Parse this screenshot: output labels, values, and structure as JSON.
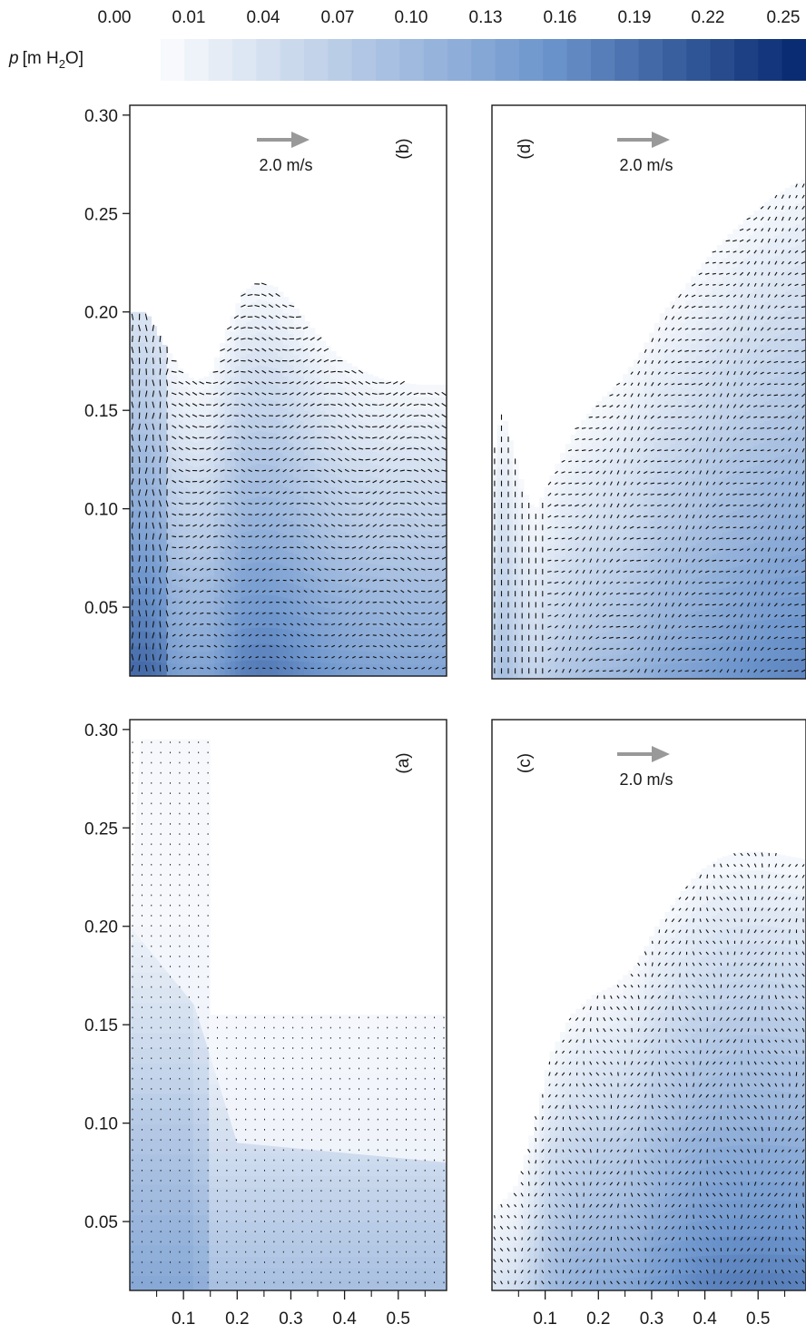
{
  "colorbar": {
    "label_italic": "p",
    "label_unit": "[m H",
    "label_sub": "2",
    "label_end": "O]",
    "ticks": [
      "0.00",
      "0.01",
      "0.04",
      "0.07",
      "0.10",
      "0.13",
      "0.16",
      "0.19",
      "0.22",
      "0.25"
    ],
    "color_low": "#f7f9fc",
    "color_high": "#0a2c73",
    "bands": 27
  },
  "scale_arrow": {
    "label": "2.0 m/s",
    "color": "#999999"
  },
  "chart_data": [
    {
      "type": "vector-field",
      "panel_label": "(b)",
      "xlim": [
        0.0,
        0.59
      ],
      "ylim": [
        0.015,
        0.305
      ],
      "yticks": [
        "0.30",
        "0.25",
        "0.20",
        "0.15",
        "0.10",
        "0.05"
      ],
      "ytick_values": [
        0.3,
        0.25,
        0.2,
        0.15,
        0.1,
        0.05
      ],
      "xticks": [],
      "free_surface": {
        "x": [
          0.0,
          0.03,
          0.06,
          0.09,
          0.12,
          0.15,
          0.18,
          0.21,
          0.24,
          0.27,
          0.3,
          0.33,
          0.36,
          0.39,
          0.42,
          0.45,
          0.48,
          0.51,
          0.54,
          0.57,
          0.59
        ],
        "y": [
          0.2,
          0.2,
          0.185,
          0.172,
          0.165,
          0.168,
          0.19,
          0.21,
          0.215,
          0.213,
          0.205,
          0.195,
          0.185,
          0.177,
          0.172,
          0.168,
          0.165,
          0.164,
          0.163,
          0.163,
          0.163
        ]
      },
      "show_arrow_label": true
    },
    {
      "type": "vector-field",
      "panel_label": "(d)",
      "xlim": [
        0.0,
        0.59
      ],
      "ylim": [
        0.015,
        0.305
      ],
      "yticks": [],
      "xticks": [],
      "free_surface": {
        "x": [
          0.0,
          0.02,
          0.04,
          0.06,
          0.08,
          0.1,
          0.13,
          0.16,
          0.2,
          0.24,
          0.28,
          0.32,
          0.36,
          0.4,
          0.44,
          0.48,
          0.52,
          0.56,
          0.59
        ],
        "y": [
          0.125,
          0.15,
          0.13,
          0.11,
          0.1,
          0.11,
          0.128,
          0.142,
          0.155,
          0.165,
          0.18,
          0.2,
          0.212,
          0.226,
          0.238,
          0.248,
          0.257,
          0.264,
          0.268
        ]
      },
      "show_arrow_label": true
    },
    {
      "type": "vector-field",
      "panel_label": "(a)",
      "xlim": [
        0.0,
        0.59
      ],
      "ylim": [
        0.015,
        0.305
      ],
      "yticks": [
        "0.30",
        "0.25",
        "0.20",
        "0.15",
        "0.10",
        "0.05"
      ],
      "ytick_values": [
        0.3,
        0.25,
        0.2,
        0.15,
        0.1,
        0.05
      ],
      "xticks": [
        "0.1",
        "0.2",
        "0.3",
        "0.4",
        "0.5"
      ],
      "xtick_values": [
        0.1,
        0.2,
        0.3,
        0.4,
        0.5
      ],
      "free_surface": {
        "x": [
          0.0,
          0.15,
          0.15,
          0.59
        ],
        "y": [
          0.295,
          0.295,
          0.155,
          0.155
        ]
      },
      "show_arrow_label": false
    },
    {
      "type": "vector-field",
      "panel_label": "(c)",
      "xlim": [
        0.0,
        0.59
      ],
      "ylim": [
        0.015,
        0.305
      ],
      "yticks": [],
      "xticks": [
        "0.1",
        "0.2",
        "0.3",
        "0.4",
        "0.5"
      ],
      "xtick_values": [
        0.1,
        0.2,
        0.3,
        0.4,
        0.5
      ],
      "free_surface": {
        "x": [
          0.0,
          0.02,
          0.05,
          0.08,
          0.11,
          0.15,
          0.19,
          0.23,
          0.27,
          0.31,
          0.35,
          0.39,
          0.43,
          0.47,
          0.51,
          0.55,
          0.59
        ],
        "y": [
          0.055,
          0.06,
          0.07,
          0.1,
          0.135,
          0.155,
          0.165,
          0.17,
          0.18,
          0.2,
          0.215,
          0.228,
          0.235,
          0.238,
          0.238,
          0.236,
          0.234
        ]
      },
      "show_arrow_label": true
    }
  ]
}
